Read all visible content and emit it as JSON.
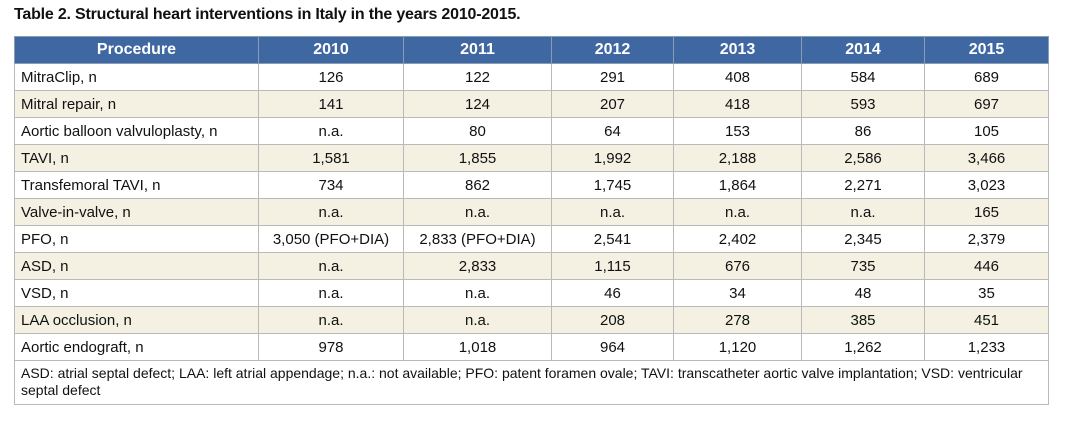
{
  "header": {
    "title": "Table 2. Structural heart interventions in Italy in the years 2010-2015."
  },
  "table": {
    "columns": [
      "Procedure",
      "2010",
      "2011",
      "2012",
      "2013",
      "2014",
      "2015"
    ],
    "rows": [
      [
        "MitraClip, n",
        "126",
        "122",
        "291",
        "408",
        "584",
        "689"
      ],
      [
        "Mitral repair, n",
        "141",
        "124",
        "207",
        "418",
        "593",
        "697"
      ],
      [
        "Aortic balloon valvuloplasty, n",
        "n.a.",
        "80",
        "64",
        "153",
        "86",
        "105"
      ],
      [
        "TAVI, n",
        "1,581",
        "1,855",
        "1,992",
        "2,188",
        "2,586",
        "3,466"
      ],
      [
        "Transfemoral TAVI, n",
        "734",
        "862",
        "1,745",
        "1,864",
        "2,271",
        "3,023"
      ],
      [
        "Valve-in-valve, n",
        "n.a.",
        "n.a.",
        "n.a.",
        "n.a.",
        "n.a.",
        "165"
      ],
      [
        "PFO, n",
        "3,050 (PFO+DIA)",
        "2,833 (PFO+DIA)",
        "2,541",
        "2,402",
        "2,345",
        "2,379"
      ],
      [
        "ASD, n",
        "n.a.",
        "2,833",
        "1,115",
        "676",
        "735",
        "446"
      ],
      [
        "VSD, n",
        "n.a.",
        "n.a.",
        "46",
        "34",
        "48",
        "35"
      ],
      [
        "LAA occlusion, n",
        "n.a.",
        "n.a.",
        "208",
        "278",
        "385",
        "451"
      ],
      [
        "Aortic endograft, n",
        "978",
        "1,018",
        "964",
        "1,120",
        "1,262",
        "1,233"
      ]
    ],
    "footnote": "ASD: atrial septal defect; LAA: left atrial appendage; n.a.: not available; PFO: patent foramen ovale; TAVI: transcatheter aortic valve implantation; VSD: ventricular septal defect"
  }
}
